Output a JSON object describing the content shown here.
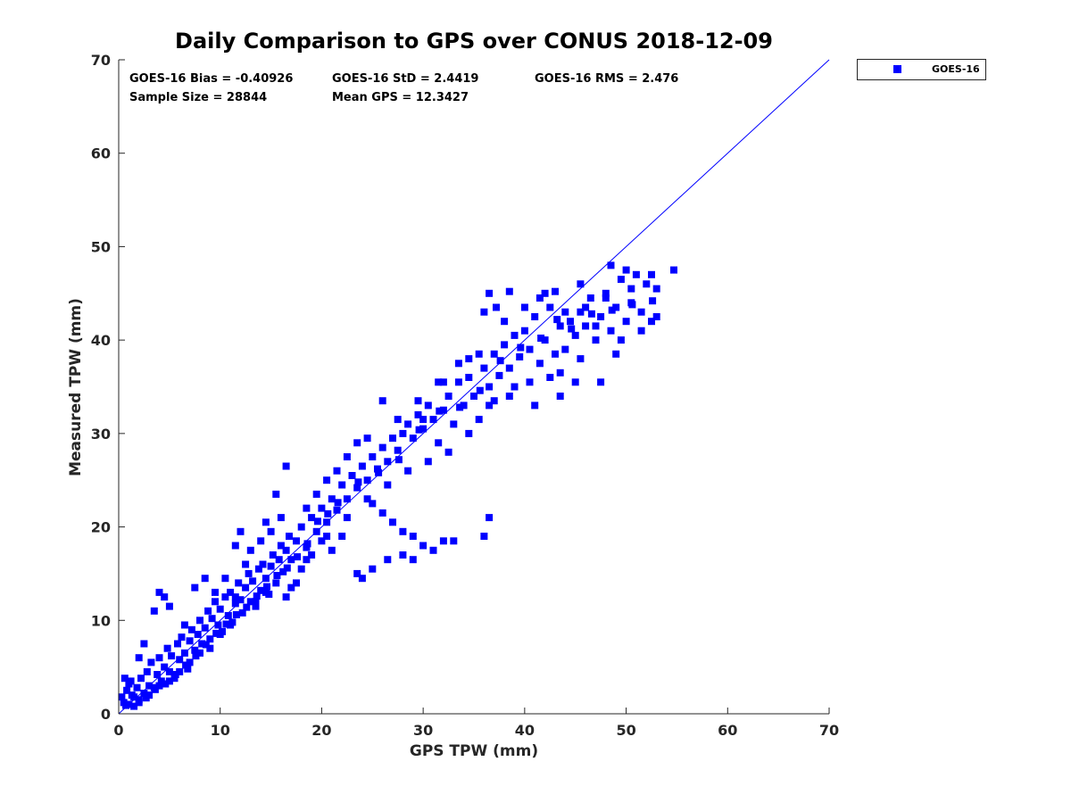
{
  "colors": {
    "series": "#0000ff",
    "axis": "#262626",
    "background": "#ffffff"
  },
  "chart_data": {
    "type": "scatter",
    "title": "Daily Comparison to GPS over CONUS 2018-12-09",
    "xlabel": "GPS TPW (mm)",
    "ylabel": "Measured TPW (mm)",
    "xlim": [
      0,
      70
    ],
    "ylim": [
      0,
      70
    ],
    "xticks": [
      "0",
      "10",
      "20",
      "30",
      "40",
      "50",
      "60",
      "70"
    ],
    "yticks": [
      "0",
      "10",
      "20",
      "30",
      "40",
      "50",
      "60",
      "70"
    ],
    "grid": false,
    "legend": {
      "placement": "outside-top-right",
      "entries": [
        "GOES-16"
      ]
    },
    "stats": [
      {
        "label": "GOES-16 Bias = -0.40926"
      },
      {
        "label": "GOES-16 StD = 2.4419"
      },
      {
        "label": "GOES-16 RMS = 2.476"
      },
      {
        "label": "Sample Size = 28844"
      },
      {
        "label": "Mean GPS = 12.3427"
      }
    ],
    "reference_line": {
      "x": [
        0,
        70
      ],
      "y": [
        0,
        70
      ]
    },
    "series": [
      {
        "name": "GOES-16",
        "marker": "square",
        "color": "#0000ff",
        "points": [
          [
            0.5,
            1.2
          ],
          [
            0.8,
            2.5
          ],
          [
            1.0,
            1.0
          ],
          [
            1.2,
            3.5
          ],
          [
            1.5,
            1.8
          ],
          [
            1.8,
            2.8
          ],
          [
            2.0,
            1.5
          ],
          [
            2.2,
            3.8
          ],
          [
            2.5,
            2.2
          ],
          [
            2.8,
            4.5
          ],
          [
            3.0,
            3.0
          ],
          [
            3.2,
            5.5
          ],
          [
            3.5,
            2.8
          ],
          [
            3.8,
            4.2
          ],
          [
            4.0,
            6.0
          ],
          [
            4.2,
            3.5
          ],
          [
            4.5,
            5.0
          ],
          [
            4.8,
            7.0
          ],
          [
            5.0,
            4.5
          ],
          [
            5.2,
            6.2
          ],
          [
            5.5,
            3.8
          ],
          [
            5.8,
            7.5
          ],
          [
            6.0,
            5.8
          ],
          [
            6.2,
            8.2
          ],
          [
            6.5,
            6.5
          ],
          [
            6.8,
            4.8
          ],
          [
            7.0,
            7.8
          ],
          [
            7.2,
            9.0
          ],
          [
            7.5,
            6.8
          ],
          [
            7.8,
            8.5
          ],
          [
            8.0,
            10.0
          ],
          [
            8.2,
            7.5
          ],
          [
            8.5,
            9.2
          ],
          [
            8.8,
            11.0
          ],
          [
            9.0,
            8.0
          ],
          [
            9.2,
            10.2
          ],
          [
            9.5,
            12.0
          ],
          [
            9.8,
            9.5
          ],
          [
            10.0,
            11.2
          ],
          [
            10.2,
            8.8
          ],
          [
            10.5,
            12.5
          ],
          [
            10.8,
            10.5
          ],
          [
            11.0,
            13.0
          ],
          [
            11.2,
            9.8
          ],
          [
            11.5,
            11.8
          ],
          [
            11.8,
            14.0
          ],
          [
            12.0,
            12.2
          ],
          [
            12.2,
            10.8
          ],
          [
            12.5,
            13.5
          ],
          [
            12.8,
            15.0
          ],
          [
            13.0,
            12.0
          ],
          [
            13.2,
            14.2
          ],
          [
            13.5,
            11.5
          ],
          [
            13.8,
            15.5
          ],
          [
            14.0,
            13.2
          ],
          [
            14.2,
            16.0
          ],
          [
            14.5,
            14.5
          ],
          [
            14.8,
            12.8
          ],
          [
            15.0,
            15.8
          ],
          [
            15.2,
            17.0
          ],
          [
            15.5,
            14.0
          ],
          [
            15.8,
            16.5
          ],
          [
            16.0,
            18.0
          ],
          [
            16.2,
            15.2
          ],
          [
            16.5,
            17.5
          ],
          [
            16.8,
            19.0
          ],
          [
            17.0,
            16.5
          ],
          [
            17.5,
            18.5
          ],
          [
            18.0,
            20.0
          ],
          [
            18.5,
            17.8
          ],
          [
            19.0,
            21.0
          ],
          [
            19.5,
            19.5
          ],
          [
            20.0,
            22.0
          ],
          [
            20.5,
            20.5
          ],
          [
            21.0,
            23.0
          ],
          [
            21.5,
            21.8
          ],
          [
            22.0,
            24.5
          ],
          [
            22.5,
            23.0
          ],
          [
            23.0,
            25.5
          ],
          [
            23.5,
            24.2
          ],
          [
            24.0,
            26.5
          ],
          [
            24.5,
            25.0
          ],
          [
            25.0,
            27.5
          ],
          [
            25.5,
            26.2
          ],
          [
            26.0,
            28.5
          ],
          [
            26.5,
            27.0
          ],
          [
            27.0,
            29.5
          ],
          [
            27.5,
            28.2
          ],
          [
            28.0,
            30.0
          ],
          [
            28.5,
            31.0
          ],
          [
            29.0,
            29.5
          ],
          [
            29.5,
            32.0
          ],
          [
            30.0,
            30.5
          ],
          [
            30.5,
            33.0
          ],
          [
            31.0,
            31.5
          ],
          [
            31.5,
            29.0
          ],
          [
            32.0,
            32.5
          ],
          [
            32.5,
            34.0
          ],
          [
            33.0,
            31.0
          ],
          [
            33.5,
            35.5
          ],
          [
            34.0,
            33.0
          ],
          [
            34.5,
            36.0
          ],
          [
            35.0,
            34.0
          ],
          [
            35.5,
            31.5
          ],
          [
            36.0,
            37.0
          ],
          [
            36.5,
            35.0
          ],
          [
            37.0,
            38.5
          ],
          [
            37.5,
            36.2
          ],
          [
            38.0,
            39.5
          ],
          [
            38.5,
            37.0
          ],
          [
            39.0,
            40.5
          ],
          [
            39.5,
            38.2
          ],
          [
            40.0,
            41.0
          ],
          [
            40.5,
            39.0
          ],
          [
            41.0,
            42.5
          ],
          [
            41.5,
            37.5
          ],
          [
            42.0,
            40.0
          ],
          [
            42.5,
            43.5
          ],
          [
            43.0,
            38.5
          ],
          [
            43.5,
            41.5
          ],
          [
            44.0,
            39.0
          ],
          [
            44.5,
            42.0
          ],
          [
            45.0,
            40.5
          ],
          [
            45.5,
            43.0
          ],
          [
            46.0,
            41.5
          ],
          [
            46.5,
            44.5
          ],
          [
            47.0,
            40.0
          ],
          [
            47.5,
            42.5
          ],
          [
            48.0,
            45.0
          ],
          [
            48.5,
            41.0
          ],
          [
            49.0,
            43.5
          ],
          [
            49.5,
            46.5
          ],
          [
            50.0,
            42.0
          ],
          [
            50.5,
            44.0
          ],
          [
            51.0,
            47.0
          ],
          [
            51.5,
            43.0
          ],
          [
            52.0,
            46.0
          ],
          [
            52.5,
            42.0
          ],
          [
            53.0,
            45.5
          ],
          [
            54.7,
            47.5
          ],
          [
            36.5,
            45.0
          ],
          [
            37.2,
            43.5
          ],
          [
            38.5,
            45.2
          ],
          [
            42.0,
            45.0
          ],
          [
            43.0,
            45.2
          ],
          [
            45.5,
            46.0
          ],
          [
            48.5,
            48.0
          ],
          [
            50.0,
            47.5
          ],
          [
            26.0,
            33.5
          ],
          [
            36.0,
            43.0
          ],
          [
            30.0,
            31.5
          ],
          [
            32.0,
            35.5
          ],
          [
            34.5,
            38.0
          ],
          [
            37.0,
            33.5
          ],
          [
            39.0,
            35.0
          ],
          [
            41.0,
            33.0
          ],
          [
            43.5,
            34.0
          ],
          [
            45.0,
            35.5
          ],
          [
            47.5,
            35.5
          ],
          [
            49.0,
            38.5
          ],
          [
            25.0,
            22.5
          ],
          [
            26.0,
            21.5
          ],
          [
            27.0,
            20.5
          ],
          [
            28.0,
            19.5
          ],
          [
            29.0,
            19.0
          ],
          [
            30.0,
            18.0
          ],
          [
            31.0,
            17.5
          ],
          [
            32.0,
            18.5
          ],
          [
            33.0,
            18.5
          ],
          [
            36.5,
            21.0
          ],
          [
            36.0,
            19.0
          ],
          [
            24.0,
            14.5
          ],
          [
            25.0,
            15.5
          ],
          [
            26.5,
            16.5
          ],
          [
            28.0,
            17.0
          ],
          [
            29.0,
            16.5
          ],
          [
            23.5,
            15.0
          ],
          [
            22.0,
            19.0
          ],
          [
            21.0,
            17.5
          ],
          [
            20.0,
            18.5
          ],
          [
            19.0,
            17.0
          ],
          [
            18.0,
            15.5
          ],
          [
            17.5,
            14.0
          ],
          [
            16.5,
            12.5
          ],
          [
            17.0,
            13.5
          ],
          [
            12.0,
            19.5
          ],
          [
            11.5,
            18.0
          ],
          [
            13.0,
            17.5
          ],
          [
            14.5,
            20.5
          ],
          [
            15.5,
            23.5
          ],
          [
            16.5,
            26.5
          ],
          [
            16.0,
            21.0
          ],
          [
            3.5,
            11.0
          ],
          [
            4.0,
            13.0
          ],
          [
            4.5,
            12.5
          ],
          [
            5.0,
            11.5
          ],
          [
            2.5,
            7.5
          ],
          [
            2.0,
            6.0
          ],
          [
            6.5,
            9.5
          ],
          [
            7.5,
            13.5
          ],
          [
            8.5,
            14.5
          ],
          [
            9.5,
            13.0
          ],
          [
            10.5,
            14.5
          ],
          [
            11.5,
            12.5
          ],
          [
            12.5,
            16.0
          ],
          [
            14.0,
            18.5
          ],
          [
            15.0,
            19.5
          ],
          [
            18.5,
            22.0
          ],
          [
            19.5,
            23.5
          ],
          [
            20.5,
            25.0
          ],
          [
            21.5,
            26.0
          ],
          [
            22.5,
            27.5
          ],
          [
            23.5,
            29.0
          ],
          [
            24.5,
            29.5
          ],
          [
            27.5,
            31.5
          ],
          [
            29.5,
            33.5
          ],
          [
            31.5,
            35.5
          ],
          [
            33.5,
            37.5
          ],
          [
            35.5,
            38.5
          ],
          [
            38.0,
            42.0
          ],
          [
            40.0,
            43.5
          ],
          [
            41.5,
            44.5
          ],
          [
            44.0,
            43.0
          ],
          [
            46.0,
            43.5
          ],
          [
            48.0,
            44.5
          ],
          [
            50.5,
            45.5
          ],
          [
            52.5,
            47.0
          ],
          [
            53.0,
            42.5
          ],
          [
            51.5,
            41.0
          ],
          [
            49.5,
            40.0
          ],
          [
            47.0,
            41.5
          ],
          [
            45.5,
            38.0
          ],
          [
            43.5,
            36.5
          ],
          [
            42.5,
            36.0
          ],
          [
            40.5,
            35.5
          ],
          [
            38.5,
            34.0
          ],
          [
            36.5,
            33.0
          ],
          [
            34.5,
            30.0
          ],
          [
            32.5,
            28.0
          ],
          [
            30.5,
            27.0
          ],
          [
            28.5,
            26.0
          ],
          [
            26.5,
            24.5
          ],
          [
            24.5,
            23.0
          ],
          [
            22.5,
            21.0
          ],
          [
            20.5,
            19.0
          ],
          [
            18.5,
            16.5
          ],
          [
            14.5,
            13.0
          ],
          [
            13.5,
            12.0
          ],
          [
            11.0,
            9.5
          ],
          [
            10.0,
            8.5
          ],
          [
            9.0,
            7.0
          ],
          [
            8.0,
            6.5
          ],
          [
            7.0,
            5.5
          ],
          [
            6.0,
            4.5
          ],
          [
            5.0,
            3.5
          ],
          [
            4.0,
            3.0
          ],
          [
            3.0,
            2.0
          ],
          [
            2.0,
            1.2
          ],
          [
            1.5,
            0.8
          ],
          [
            0.6,
            3.8
          ],
          [
            1.0,
            3.2
          ],
          [
            0.3,
            1.8
          ],
          [
            0.7,
            0.9
          ],
          [
            1.3,
            2.0
          ],
          [
            2.7,
            1.7
          ],
          [
            3.6,
            2.6
          ],
          [
            4.6,
            3.2
          ],
          [
            5.6,
            4.2
          ],
          [
            6.6,
            5.2
          ],
          [
            7.6,
            6.2
          ],
          [
            8.6,
            7.4
          ],
          [
            9.6,
            8.6
          ],
          [
            10.6,
            9.6
          ],
          [
            11.6,
            10.6
          ],
          [
            12.6,
            11.4
          ],
          [
            13.6,
            12.6
          ],
          [
            14.6,
            13.6
          ],
          [
            15.6,
            14.8
          ],
          [
            16.6,
            15.6
          ],
          [
            17.6,
            16.8
          ],
          [
            18.6,
            18.2
          ],
          [
            19.6,
            20.6
          ],
          [
            20.6,
            21.4
          ],
          [
            21.6,
            22.6
          ],
          [
            23.6,
            24.8
          ],
          [
            25.6,
            25.8
          ],
          [
            27.6,
            27.2
          ],
          [
            29.6,
            30.4
          ],
          [
            31.6,
            32.4
          ],
          [
            33.6,
            32.8
          ],
          [
            35.6,
            34.6
          ],
          [
            37.6,
            37.8
          ],
          [
            39.6,
            39.2
          ],
          [
            41.6,
            40.2
          ],
          [
            43.2,
            42.2
          ],
          [
            44.6,
            41.2
          ],
          [
            46.6,
            42.8
          ],
          [
            48.6,
            43.2
          ],
          [
            50.6,
            43.8
          ],
          [
            52.6,
            44.2
          ]
        ]
      }
    ]
  }
}
